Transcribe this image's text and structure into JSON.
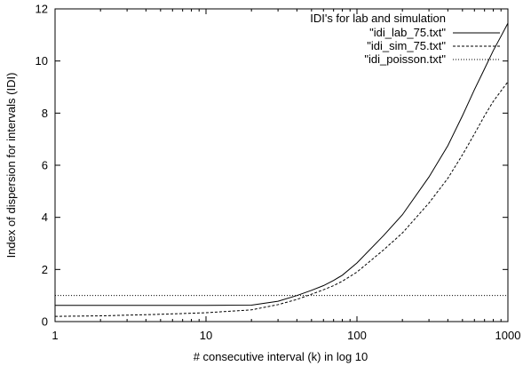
{
  "chart_data": {
    "type": "line",
    "title": "",
    "xlabel": "# consecutive interval (k) in log 10",
    "ylabel": "Index of dispersion for intervals (IDI)",
    "xscale": "log",
    "xlim": [
      1,
      1000
    ],
    "ylim": [
      0,
      12
    ],
    "x_ticks": [
      1,
      10,
      100,
      1000
    ],
    "y_ticks": [
      0,
      2,
      4,
      6,
      8,
      10,
      12
    ],
    "grid": false,
    "legend": {
      "title": "IDI's for lab and simulation",
      "placement": "top-right"
    },
    "series": [
      {
        "name": "\"idi_lab_75.txt\"",
        "style": "solid",
        "x": [
          1,
          2,
          5,
          10,
          20,
          30,
          40,
          50,
          60,
          70,
          80,
          100,
          150,
          200,
          300,
          400,
          500,
          600,
          700,
          800,
          900,
          1000
        ],
        "y": [
          0.62,
          0.62,
          0.62,
          0.62,
          0.63,
          0.78,
          1.0,
          1.2,
          1.38,
          1.58,
          1.78,
          2.25,
          3.3,
          4.1,
          5.55,
          6.75,
          7.9,
          8.9,
          9.7,
          10.4,
          10.95,
          11.45
        ]
      },
      {
        "name": "\"idi_sim_75.txt\"",
        "style": "dashed",
        "x": [
          1,
          2,
          5,
          10,
          20,
          30,
          40,
          50,
          60,
          70,
          80,
          100,
          150,
          200,
          300,
          400,
          500,
          600,
          700,
          800,
          900,
          1000
        ],
        "y": [
          0.2,
          0.22,
          0.28,
          0.34,
          0.45,
          0.65,
          0.85,
          1.05,
          1.22,
          1.38,
          1.55,
          1.9,
          2.75,
          3.4,
          4.55,
          5.5,
          6.4,
          7.2,
          7.9,
          8.45,
          8.85,
          9.2
        ]
      },
      {
        "name": "\"idi_poisson.txt\"",
        "style": "dotted",
        "x": [
          1,
          1000
        ],
        "y": [
          1.0,
          1.0
        ]
      }
    ]
  }
}
